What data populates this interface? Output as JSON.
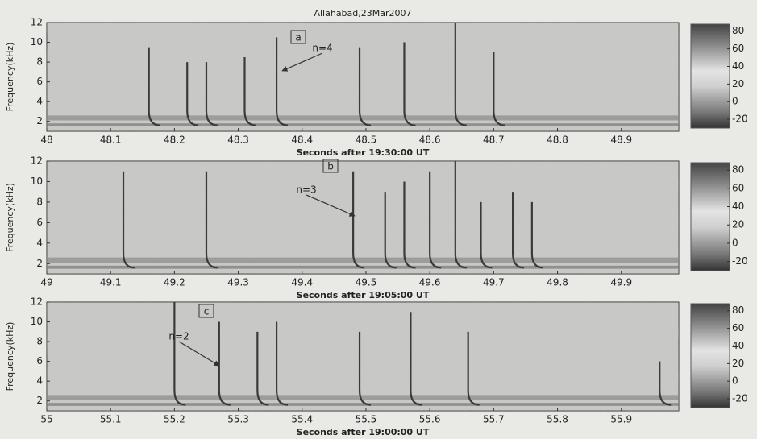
{
  "chart_data": [
    {
      "type": "spectrogram",
      "title": "Allahabad,23Mar2007",
      "xlabel": "Seconds after 19:30:00 UT",
      "ylabel": "Frequency(kHz)",
      "xlim": [
        48,
        48.99
      ],
      "xticks": [
        48,
        48.1,
        48.2,
        48.3,
        48.4,
        48.5,
        48.6,
        48.7,
        48.8,
        48.9
      ],
      "ylim": [
        1,
        12
      ],
      "yticks": [
        2,
        4,
        6,
        8,
        10,
        12
      ],
      "clim": [
        -30,
        88
      ],
      "cticks": [
        80,
        60,
        40,
        20,
        0,
        -20
      ],
      "x": [
        48.16,
        48.22,
        48.25,
        48.31,
        48.36,
        48.49,
        48.56,
        48.64,
        48.7
      ],
      "values": [
        9.5,
        8,
        8,
        8.5,
        10.5,
        9.5,
        10,
        12,
        9
      ],
      "annotations": [
        "a",
        "n=4"
      ]
    },
    {
      "type": "spectrogram",
      "xlabel": "Seconds after 19:05:00 UT",
      "ylabel": "Frequency(kHz)",
      "xlim": [
        49,
        49.99
      ],
      "xticks": [
        49,
        49.1,
        49.2,
        49.3,
        49.4,
        49.5,
        49.6,
        49.7,
        49.8,
        49.9
      ],
      "ylim": [
        1,
        12
      ],
      "yticks": [
        2,
        4,
        6,
        8,
        10,
        12
      ],
      "clim": [
        -30,
        88
      ],
      "cticks": [
        80,
        60,
        40,
        20,
        0,
        -20
      ],
      "x": [
        49.12,
        49.25,
        49.48,
        49.53,
        49.56,
        49.6,
        49.64,
        49.68,
        49.73,
        49.76
      ],
      "values": [
        11,
        11,
        11,
        9,
        10,
        11,
        12,
        8,
        9,
        8
      ],
      "annotations": [
        "b",
        "n=3"
      ]
    },
    {
      "type": "spectrogram",
      "xlabel": "Seconds after 19:00:00 UT",
      "ylabel": "Frequency(kHz)",
      "xlim": [
        55,
        55.99
      ],
      "xticks": [
        55,
        55.1,
        55.2,
        55.3,
        55.4,
        55.5,
        55.6,
        55.7,
        55.8,
        55.9
      ],
      "ylim": [
        1,
        12
      ],
      "yticks": [
        2,
        4,
        6,
        8,
        10,
        12
      ],
      "clim": [
        -30,
        88
      ],
      "cticks": [
        80,
        60,
        40,
        20,
        0,
        -20
      ],
      "x": [
        55.2,
        55.27,
        55.33,
        55.36,
        55.49,
        55.57,
        55.66,
        55.96
      ],
      "values": [
        12,
        10,
        9,
        10,
        9,
        11,
        9,
        6
      ],
      "annotations": [
        "c",
        "n=2"
      ]
    }
  ]
}
